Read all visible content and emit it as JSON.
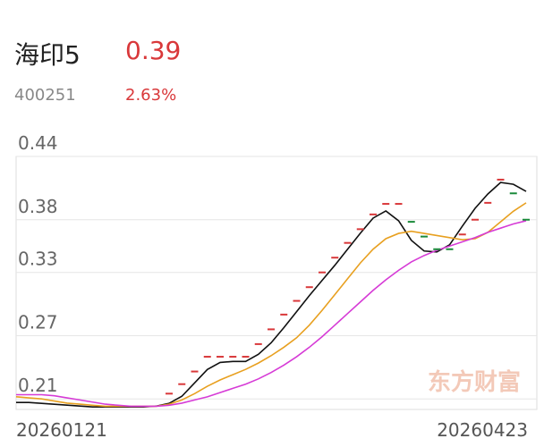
{
  "header": {
    "name": "海印5",
    "price": "0.39",
    "code": "400251",
    "change": "2.63%"
  },
  "chart_data": {
    "type": "line",
    "watermark": "东方财富",
    "categories": [
      "20260121",
      null,
      null,
      null,
      null,
      null,
      null,
      null,
      null,
      null,
      null,
      null,
      null,
      null,
      null,
      null,
      null,
      null,
      null,
      null,
      null,
      null,
      null,
      null,
      null,
      null,
      null,
      null,
      null,
      null,
      null,
      null,
      null,
      null,
      null,
      null,
      null,
      null,
      null,
      null,
      "20260423"
    ],
    "ylim": [
      0.2,
      0.44
    ],
    "yticks": [
      0.21,
      0.27,
      0.33,
      0.38,
      0.44
    ],
    "grid": true,
    "series": [
      {
        "color": "#111111",
        "values": [
          0.2066,
          0.2066,
          0.2058,
          0.2049,
          0.2041,
          0.2032,
          0.2024,
          0.2024,
          0.2024,
          0.2024,
          0.2024,
          0.2032,
          0.2058,
          0.2125,
          0.2252,
          0.2379,
          0.2446,
          0.2455,
          0.2455,
          0.2523,
          0.2632,
          0.2776,
          0.2928,
          0.308,
          0.3224,
          0.3368,
          0.352,
          0.3672,
          0.3815,
          0.3883,
          0.379,
          0.3604,
          0.3503,
          0.3494,
          0.3562,
          0.3739,
          0.3908,
          0.4044,
          0.4153,
          0.4136,
          0.4069
        ]
      },
      {
        "color": "#e8a020",
        "values": [
          0.212,
          0.211,
          0.21,
          0.208,
          0.206,
          0.205,
          0.204,
          0.203,
          0.203,
          0.203,
          0.203,
          0.203,
          0.205,
          0.209,
          0.215,
          0.222,
          0.228,
          0.233,
          0.238,
          0.244,
          0.251,
          0.259,
          0.268,
          0.28,
          0.294,
          0.309,
          0.324,
          0.339,
          0.352,
          0.362,
          0.367,
          0.369,
          0.367,
          0.365,
          0.363,
          0.361,
          0.362,
          0.368,
          0.378,
          0.388,
          0.396
        ]
      },
      {
        "color": "#d63bd6",
        "values": [
          0.214,
          0.214,
          0.214,
          0.213,
          0.211,
          0.209,
          0.207,
          0.205,
          0.204,
          0.203,
          0.203,
          0.203,
          0.204,
          0.206,
          0.209,
          0.212,
          0.216,
          0.22,
          0.224,
          0.229,
          0.235,
          0.242,
          0.25,
          0.259,
          0.269,
          0.28,
          0.291,
          0.302,
          0.313,
          0.323,
          0.332,
          0.34,
          0.346,
          0.351,
          0.355,
          0.359,
          0.363,
          0.368,
          0.372,
          0.376,
          0.379
        ]
      },
      {
        "color": "#d9383a",
        "marker": "dash",
        "values": [
          null,
          null,
          null,
          null,
          null,
          null,
          null,
          null,
          null,
          null,
          null,
          null,
          0.215,
          0.224,
          0.236,
          0.25,
          0.25,
          0.25,
          0.25,
          0.262,
          0.276,
          0.29,
          0.303,
          0.316,
          0.33,
          0.344,
          0.358,
          0.371,
          0.385,
          0.395,
          0.395,
          null,
          null,
          null,
          null,
          0.366,
          0.38,
          0.396,
          0.418,
          null,
          null
        ]
      },
      {
        "color": "#1a8a3a",
        "marker": "dash",
        "values": [
          null,
          null,
          null,
          null,
          null,
          null,
          null,
          null,
          null,
          null,
          null,
          null,
          null,
          null,
          null,
          null,
          null,
          null,
          null,
          null,
          null,
          null,
          null,
          null,
          null,
          null,
          null,
          null,
          null,
          null,
          null,
          0.378,
          0.364,
          0.352,
          0.352,
          null,
          null,
          null,
          null,
          0.405,
          0.38
        ]
      }
    ]
  }
}
